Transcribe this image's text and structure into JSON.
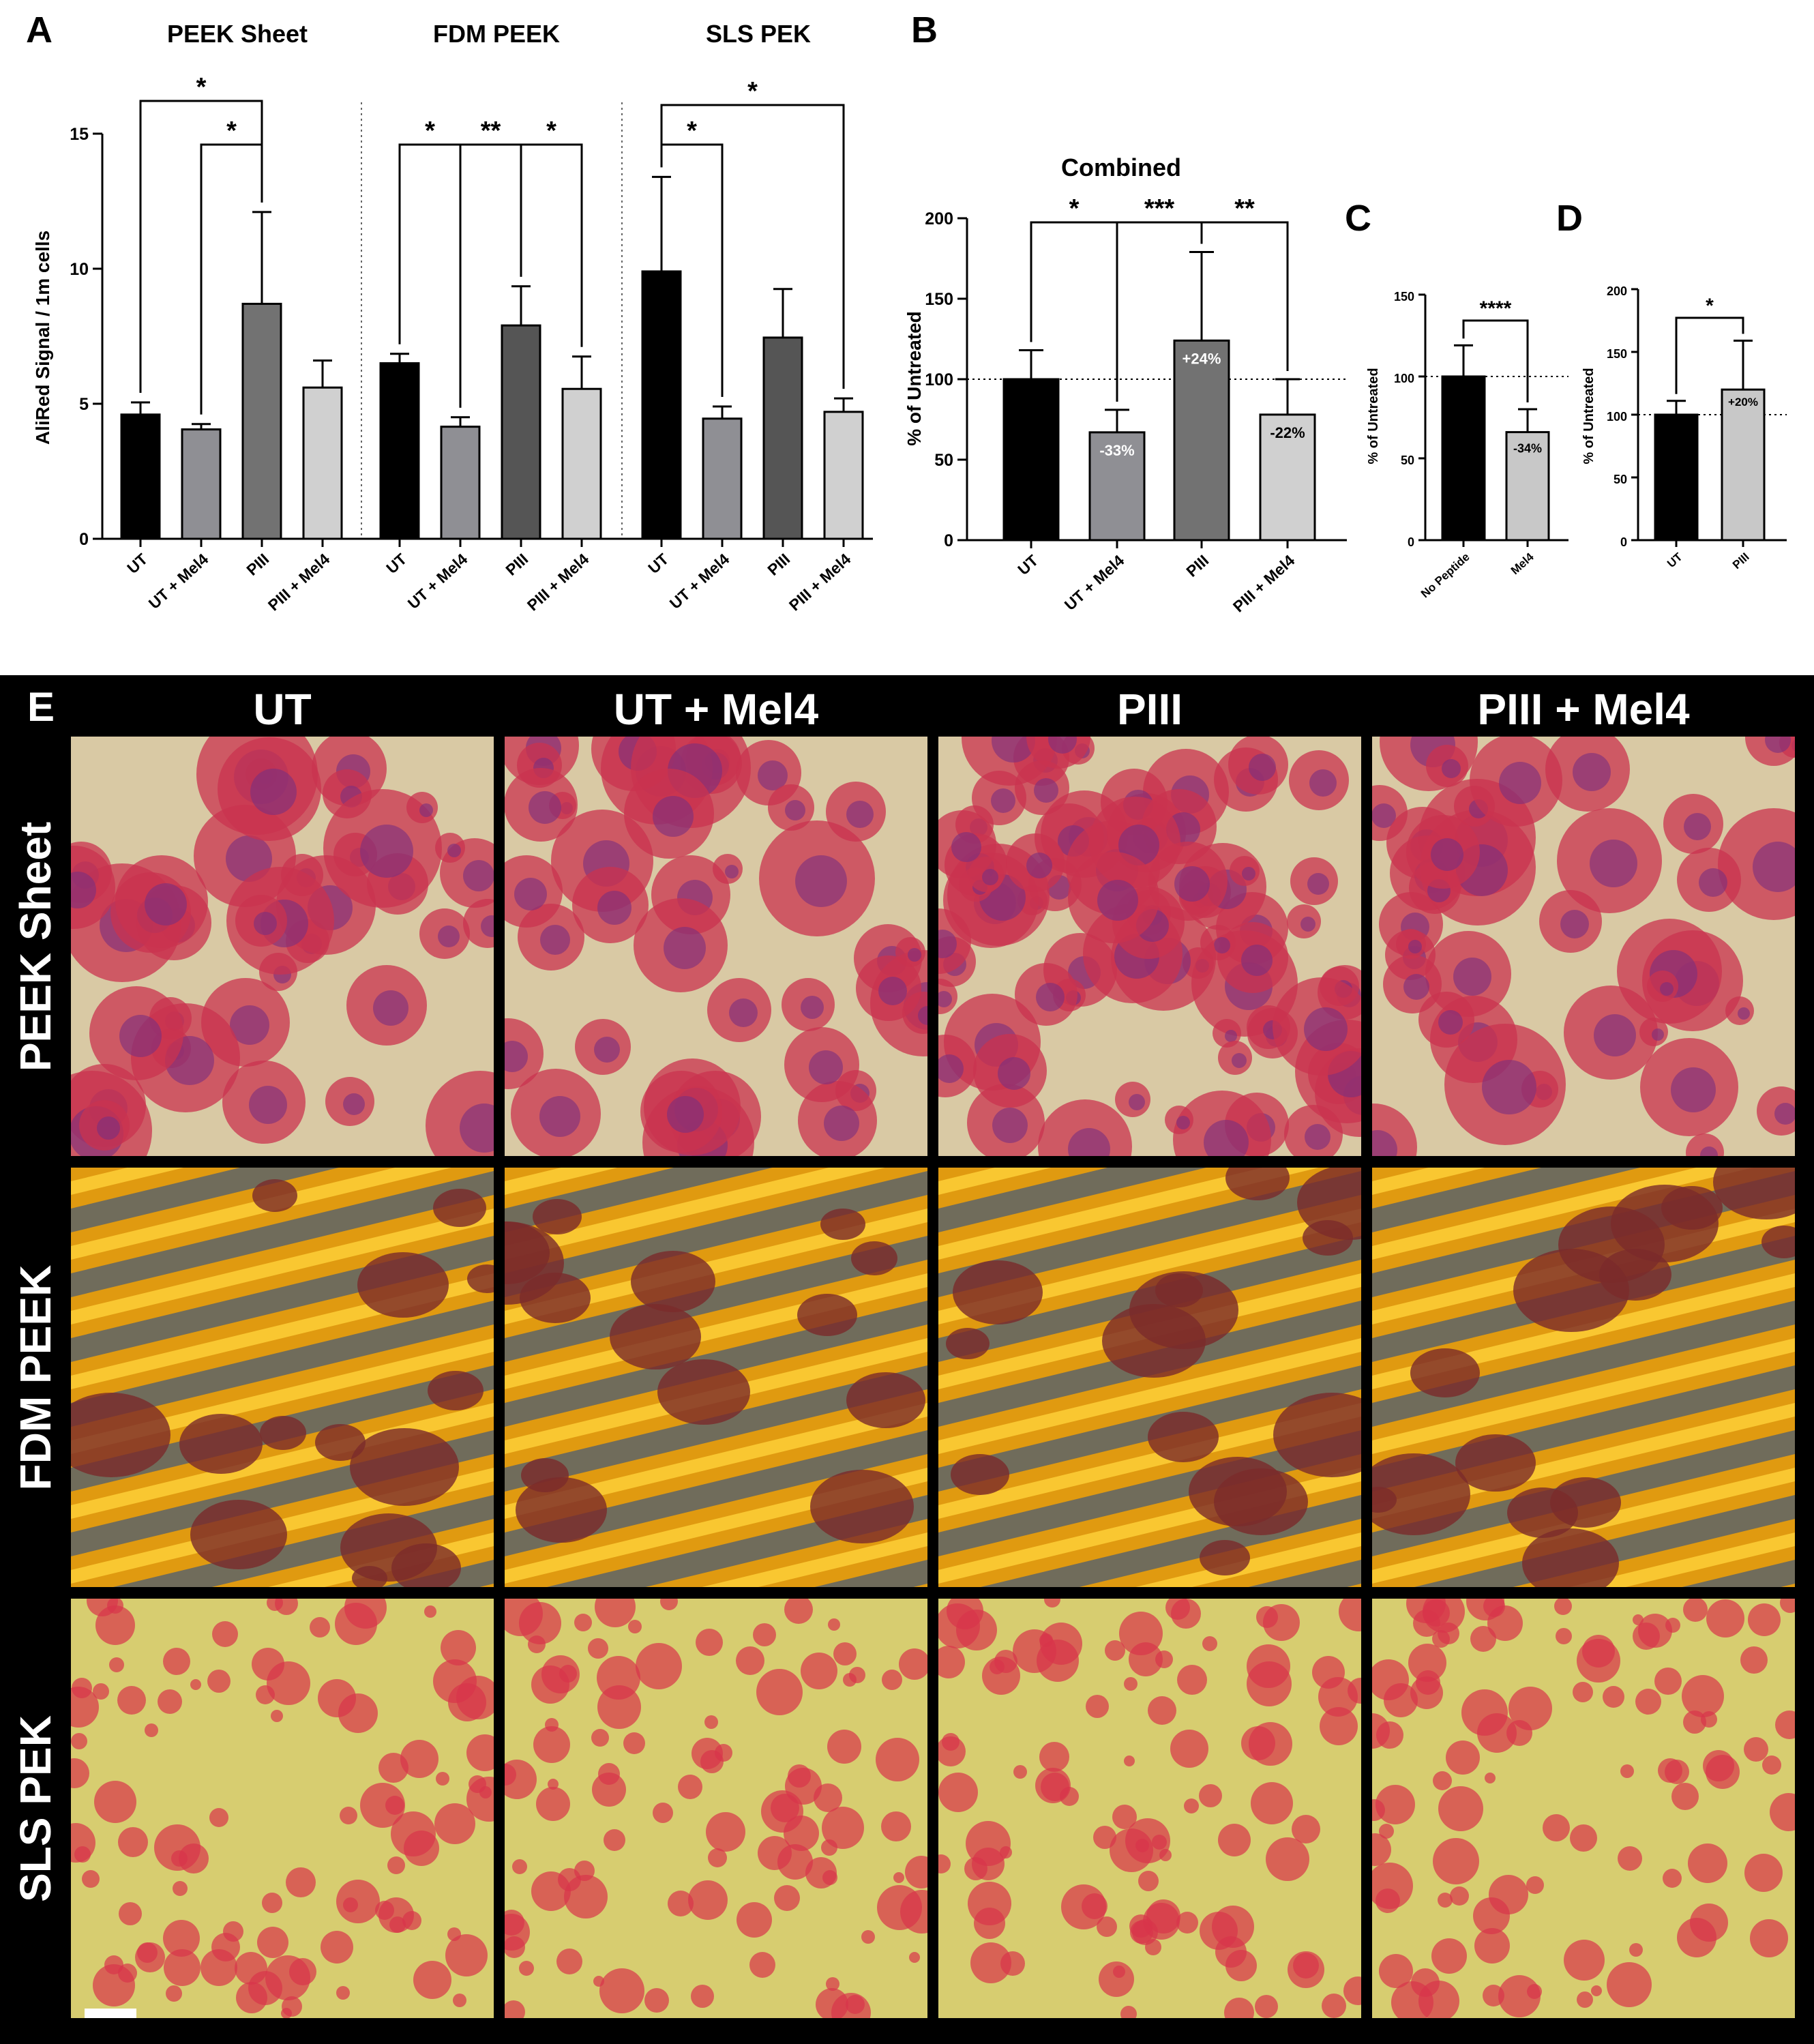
{
  "panels": {
    "A": "A",
    "B": "B",
    "C": "C",
    "D": "D",
    "E": "E"
  },
  "chart_data": [
    {
      "panel": "A",
      "type": "bar",
      "ylabel": "AliRed Signal / 1m cells",
      "ylim": [
        0,
        15
      ],
      "yticks": [
        "0",
        "5",
        "10",
        "15"
      ],
      "groups": [
        {
          "title": "PEEK Sheet",
          "categories": [
            "UT",
            "UT + Mel4",
            "PIII",
            "PIII + Mel4"
          ],
          "values": [
            4.6,
            4.05,
            8.7,
            5.6
          ],
          "errors": [
            0.45,
            0.2,
            3.4,
            1.0
          ],
          "colors": [
            "#000000",
            "#8f8f94",
            "#727272",
            "#d0d0d0"
          ]
        },
        {
          "title": "FDM PEEK",
          "categories": [
            "UT",
            "UT + Mel4",
            "PIII",
            "PIII + Mel4"
          ],
          "values": [
            6.5,
            4.15,
            7.9,
            5.55
          ],
          "errors": [
            0.35,
            0.35,
            1.45,
            1.2
          ],
          "colors": [
            "#000000",
            "#8f8f94",
            "#555555",
            "#d0d0d0"
          ]
        },
        {
          "title": "SLS PEK",
          "categories": [
            "UT",
            "UT + Mel4",
            "PIII",
            "PIII + Mel4"
          ],
          "values": [
            9.9,
            4.45,
            7.45,
            4.7
          ],
          "errors": [
            3.5,
            0.45,
            1.8,
            0.5
          ],
          "colors": [
            "#000000",
            "#8f8f94",
            "#555555",
            "#d0d0d0"
          ]
        }
      ],
      "significance": [
        "*",
        "*",
        "*",
        "**",
        "*",
        "*",
        "*"
      ]
    },
    {
      "panel": "B",
      "type": "bar",
      "title": "Combined",
      "ylabel": "% of Untreated",
      "ylim": [
        0,
        200
      ],
      "yticks": [
        "0",
        "50",
        "100",
        "150",
        "200"
      ],
      "categories": [
        "UT",
        "UT + Mel4",
        "PIII",
        "PIII + Mel4"
      ],
      "values": [
        100,
        67,
        124,
        78
      ],
      "errors": [
        18,
        14,
        55,
        22
      ],
      "labels": [
        "",
        "-33%",
        "+24%",
        "-22%"
      ],
      "colors": [
        "#000000",
        "#8f8f94",
        "#727272",
        "#d0d0d0"
      ],
      "reference_line": 100,
      "significance": [
        "*",
        "***",
        "**"
      ]
    },
    {
      "panel": "C",
      "type": "bar",
      "ylabel": "% of Untreated",
      "ylim": [
        0,
        150
      ],
      "yticks": [
        "0",
        "50",
        "100",
        "150"
      ],
      "categories": [
        "No Peptide",
        "Mel4"
      ],
      "values": [
        100,
        66
      ],
      "errors": [
        19,
        14
      ],
      "labels": [
        "",
        "-34%"
      ],
      "colors": [
        "#000000",
        "#c8c8c8"
      ],
      "reference_line": 100,
      "significance": [
        "****"
      ]
    },
    {
      "panel": "D",
      "type": "bar",
      "ylabel": "% of Untreated",
      "ylim": [
        0,
        200
      ],
      "yticks": [
        "0",
        "50",
        "100",
        "150",
        "200"
      ],
      "categories": [
        "UT",
        "PIII"
      ],
      "values": [
        100,
        120
      ],
      "errors": [
        11,
        39
      ],
      "labels": [
        "",
        "+20%"
      ],
      "colors": [
        "#000000",
        "#c8c8c8"
      ],
      "reference_line": 100,
      "significance": [
        "*"
      ]
    }
  ],
  "micrographs": {
    "columns": [
      "UT",
      "UT + Mel4",
      "PIII",
      "PIII + Mel4"
    ],
    "rows": [
      "PEEK Sheet",
      "FDM PEEK",
      "SLS PEK"
    ]
  }
}
